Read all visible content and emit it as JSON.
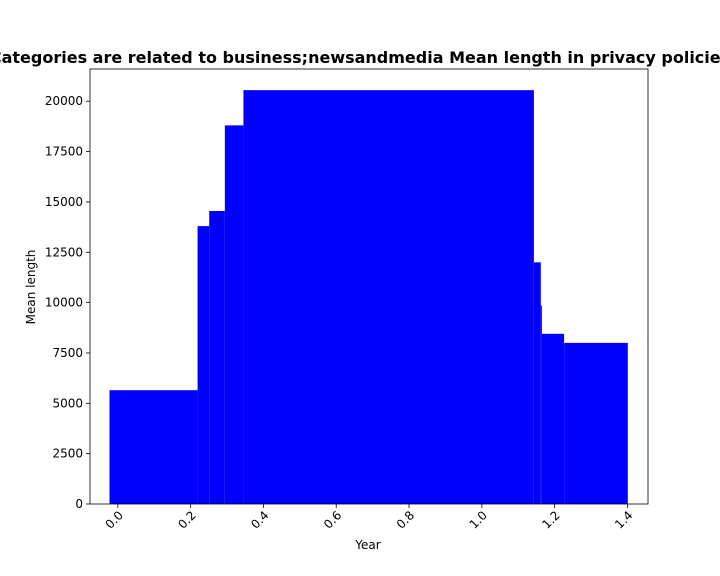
{
  "chart_data": {
    "type": "bar",
    "title": "Categories are related to business;newsandmedia Mean length in privacy policies",
    "xlabel": "Year",
    "ylabel": "Mean length",
    "xlim": [
      -0.0765,
      1.4565
    ],
    "ylim": [
      0,
      21600
    ],
    "x_ticks": [
      0.0,
      0.2,
      0.4,
      0.6,
      0.8,
      1.0,
      1.2,
      1.4
    ],
    "x_tick_labels": [
      "0.0",
      "0.2",
      "0.4",
      "0.6",
      "0.8",
      "1.0",
      "1.2",
      "1.4"
    ],
    "y_ticks": [
      0,
      2500,
      5000,
      7500,
      10000,
      12500,
      15000,
      17500,
      20000
    ],
    "y_tick_labels": [
      "0",
      "2500",
      "5000",
      "7500",
      "10000",
      "12500",
      "15000",
      "17500",
      "20000"
    ],
    "grid": false,
    "bar_color": "#0000ff",
    "bars": [
      {
        "x_start": -0.023,
        "x_end": 0.219,
        "value": 5650
      },
      {
        "x_start": 0.219,
        "x_end": 0.251,
        "value": 13800
      },
      {
        "x_start": 0.251,
        "x_end": 0.294,
        "value": 14550
      },
      {
        "x_start": 0.294,
        "x_end": 0.345,
        "value": 18800
      },
      {
        "x_start": 0.345,
        "x_end": 1.143,
        "value": 20550
      },
      {
        "x_start": 1.143,
        "x_end": 1.162,
        "value": 12000
      },
      {
        "x_start": 1.162,
        "x_end": 1.165,
        "value": 9850
      },
      {
        "x_start": 1.165,
        "x_end": 1.226,
        "value": 8450
      },
      {
        "x_start": 1.226,
        "x_end": 1.401,
        "value": 8000
      }
    ]
  }
}
